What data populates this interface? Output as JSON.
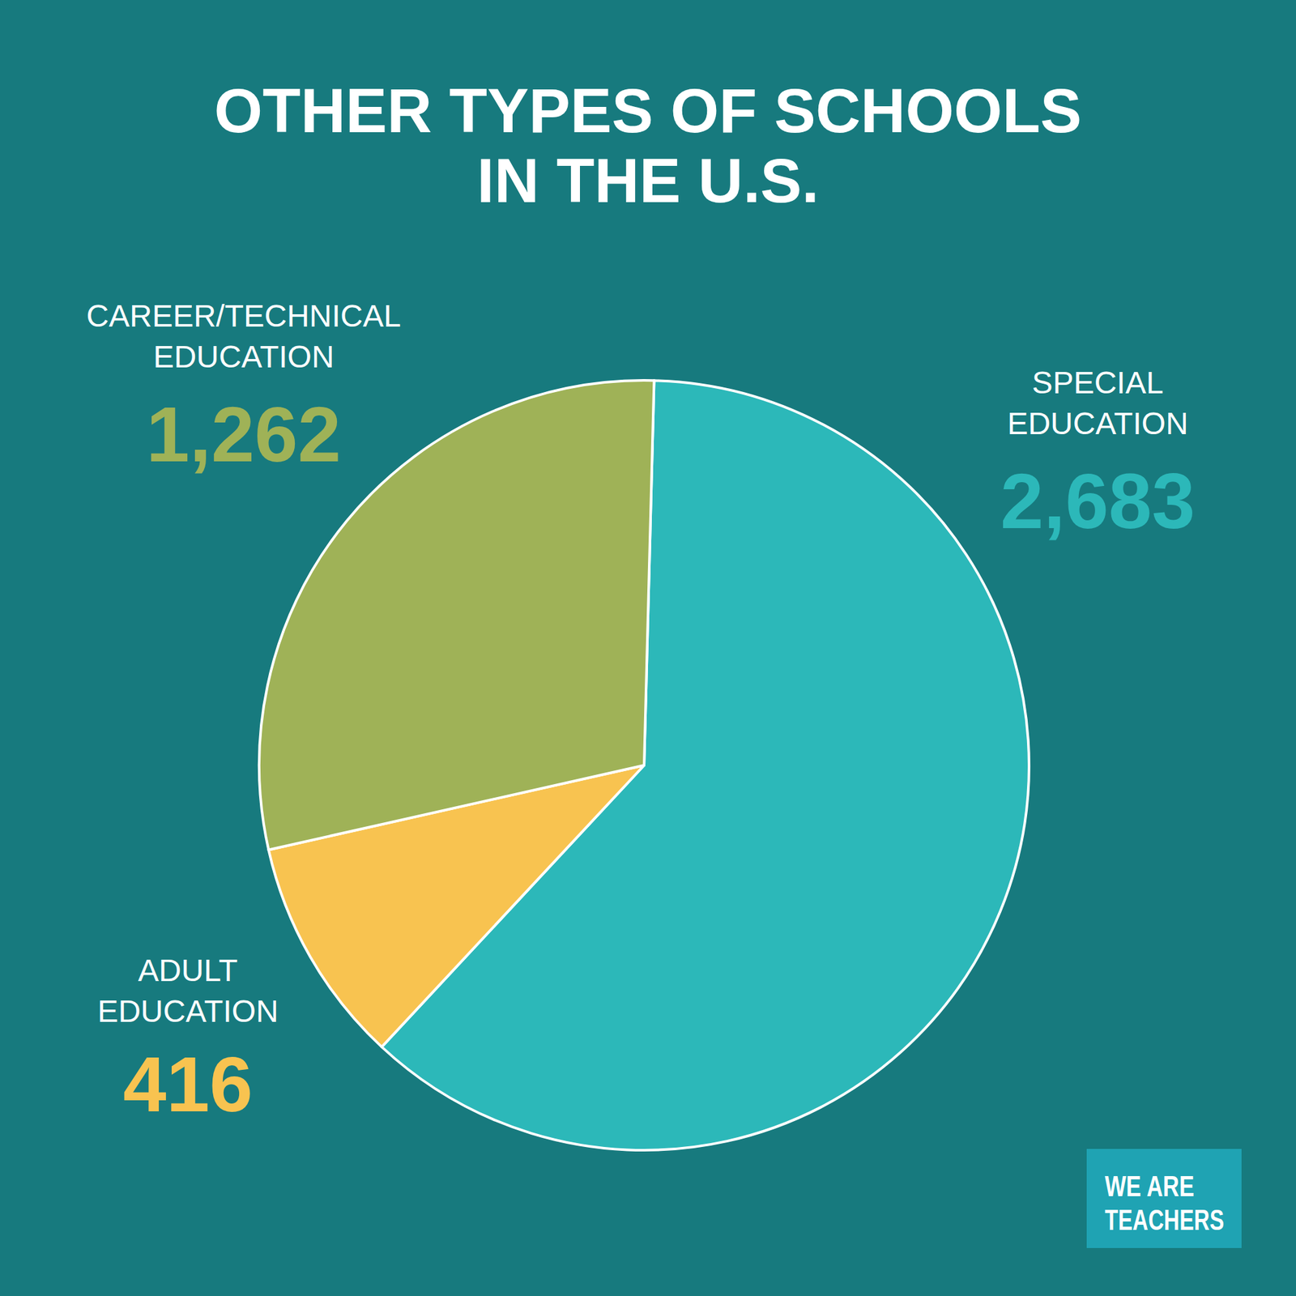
{
  "chart_data": {
    "type": "pie",
    "title": "OTHER TYPES OF SCHOOLS\nIN THE U.S.",
    "categories": [
      "SPECIAL\nEDUCATION",
      "ADULT\nEDUCATION",
      "CAREER/TECHNICAL\nEDUCATION"
    ],
    "values": [
      2683,
      416,
      1262
    ],
    "value_labels": [
      "2,683",
      "416",
      "1,262"
    ],
    "colors": [
      "#2cb8b9",
      "#f8c350",
      "#9fb257"
    ],
    "data_labels": true,
    "annotations": [
      "WE ARE\nTEACHERS"
    ]
  }
}
